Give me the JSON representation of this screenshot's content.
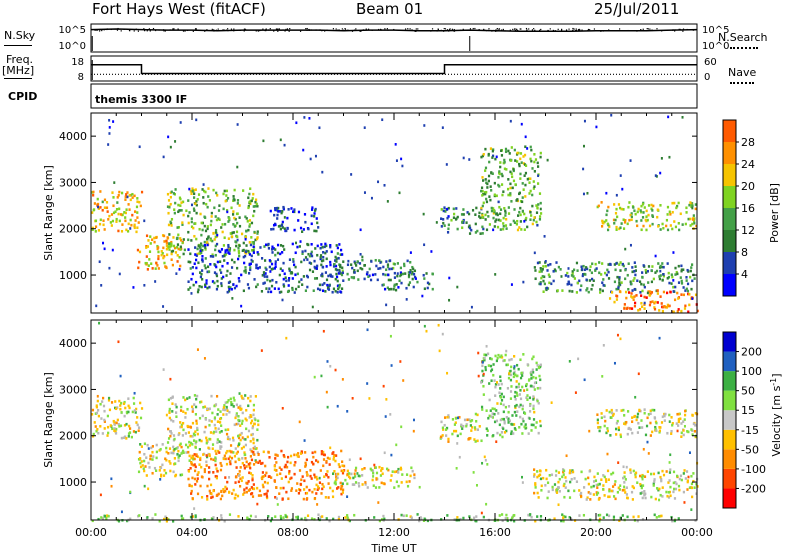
{
  "header": {
    "radar": "Fort Hays West (fitACF)",
    "beam": "Beam 01",
    "date": "25/Jul/2011"
  },
  "aux_panels": {
    "nsky_label": "N.Sky",
    "nsearch_label": "N.Search",
    "noise_ticks": [
      "10^5",
      "10^0"
    ],
    "freq_label": "Freq.",
    "freq_unit": "[MHz]",
    "freq_ticks": [
      "18",
      "8"
    ],
    "nave_label": "Nave",
    "nave_ticks": [
      "60",
      "0"
    ],
    "cpid_label": "CPID",
    "cpid_value": "themis 3300 IF"
  },
  "colors": {
    "power_scale": [
      "#0000ff",
      "#1e3fb0",
      "#2e7d32",
      "#43a047",
      "#7fd321",
      "#f6c400",
      "#ff9000",
      "#ff5a00",
      "#ff0000"
    ],
    "velocity_scale": [
      "#ff0000",
      "#ff4500",
      "#ff8c00",
      "#ffc000",
      "#c8c8c8",
      "#80e040",
      "#3cb043",
      "#2060c0",
      "#0000d0"
    ],
    "ground_scatter": "#b8b8b8"
  },
  "chart_data": [
    {
      "type": "line",
      "title": "",
      "series": [
        {
          "name": "N.Sky",
          "x": [
            "00:00",
            "01:00",
            "02:00",
            "03:00",
            "04:00",
            "05:00",
            "06:00",
            "07:00",
            "08:00",
            "09:00",
            "10:00",
            "11:00",
            "12:00",
            "13:00",
            "14:00",
            "15:00",
            "16:00",
            "17:00",
            "18:00",
            "19:00",
            "20:00",
            "21:00",
            "22:00",
            "23:00",
            "24:00"
          ],
          "values": [
            4.0,
            4.1,
            4.0,
            3.9,
            3.9,
            3.8,
            3.9,
            3.9,
            3.9,
            3.9,
            3.8,
            3.9,
            3.9,
            3.8,
            3.8,
            3.9,
            3.8,
            3.7,
            3.7,
            3.7,
            3.8,
            3.8,
            3.8,
            3.9,
            4.0
          ]
        }
      ],
      "ylim": [
        0,
        5
      ],
      "ylabel": "N.Sky"
    },
    {
      "type": "line",
      "series": [
        {
          "name": "Freq.",
          "x": [
            "00:00",
            "02:00",
            "02:00",
            "14:00",
            "14:00",
            "15:00",
            "24:00"
          ],
          "values": [
            14.5,
            14.5,
            11.0,
            11.0,
            14.5,
            14.5,
            14.5
          ]
        },
        {
          "name": "Nave",
          "x": [
            "00:00",
            "24:00"
          ],
          "values": [
            16,
            16
          ]
        }
      ],
      "freq_ylim": [
        8,
        18
      ],
      "nave_ylim": [
        0,
        60
      ]
    },
    {
      "type": "heatmap",
      "ylabel": "Slant Range [km]",
      "xlabel": "Time UT",
      "x_ticks": [
        "00:00",
        "04:00",
        "08:00",
        "12:00",
        "16:00",
        "20:00",
        "00:00"
      ],
      "y_ticks": [
        1000,
        2000,
        3000,
        4000
      ],
      "xlim_hours": [
        0,
        24
      ],
      "ylim_km": [
        180,
        4500
      ],
      "colorbar_label": "Power [dB]",
      "colorbar_ticks": [
        4,
        8,
        12,
        16,
        20,
        24,
        28
      ],
      "colorbar_range": [
        0,
        32
      ],
      "regions": [
        {
          "t0": 0.0,
          "t1": 2.0,
          "r0": 1950,
          "r1": 2850,
          "p": 20
        },
        {
          "t0": 1.8,
          "t1": 3.6,
          "r0": 1150,
          "r1": 1900,
          "p": 21
        },
        {
          "t0": 3.0,
          "t1": 6.6,
          "r0": 1450,
          "r1": 2900,
          "p": 14
        },
        {
          "t0": 3.8,
          "t1": 10.0,
          "r0": 650,
          "r1": 1700,
          "p": 6
        },
        {
          "t0": 7.0,
          "t1": 9.0,
          "r0": 1950,
          "r1": 2500,
          "p": 5
        },
        {
          "t0": 9.5,
          "t1": 12.8,
          "r0": 900,
          "r1": 1350,
          "p": 9
        },
        {
          "t0": 11.5,
          "t1": 13.5,
          "r0": 700,
          "r1": 1100,
          "p": 8
        },
        {
          "t0": 13.8,
          "t1": 15.5,
          "r0": 1900,
          "r1": 2500,
          "p": 9
        },
        {
          "t0": 15.4,
          "t1": 17.8,
          "r0": 2000,
          "r1": 3800,
          "p": 13
        },
        {
          "t0": 17.5,
          "t1": 24.0,
          "r0": 650,
          "r1": 1300,
          "p": 10
        },
        {
          "t0": 20.5,
          "t1": 24.0,
          "r0": 230,
          "r1": 700,
          "p": 24
        },
        {
          "t0": 20.0,
          "t1": 24.0,
          "r0": 2000,
          "r1": 2600,
          "p": 17
        }
      ]
    },
    {
      "type": "heatmap",
      "ylabel": "Slant Range [km]",
      "xlabel": "Time UT",
      "x_ticks": [
        "00:00",
        "04:00",
        "08:00",
        "12:00",
        "16:00",
        "20:00",
        "00:00"
      ],
      "y_ticks": [
        1000,
        2000,
        3000,
        4000
      ],
      "xlim_hours": [
        0,
        24
      ],
      "ylim_km": [
        180,
        4500
      ],
      "colorbar_label": "Velocity [m s^-1]",
      "colorbar_ticks": [
        -200,
        -100,
        -50,
        -15,
        15,
        50,
        100,
        200
      ],
      "regions": [
        {
          "t0": 0.0,
          "t1": 2.0,
          "r0": 1950,
          "r1": 2850,
          "v": 0
        },
        {
          "t0": 1.8,
          "t1": 3.6,
          "r0": 1150,
          "r1": 1900,
          "v": 0
        },
        {
          "t0": 3.0,
          "t1": 6.6,
          "r0": 1450,
          "r1": 2900,
          "v": 0
        },
        {
          "t0": 3.8,
          "t1": 10.0,
          "r0": 650,
          "r1": 1700,
          "v": -80
        },
        {
          "t0": 9.5,
          "t1": 12.8,
          "r0": 900,
          "r1": 1350,
          "v": 0
        },
        {
          "t0": 13.8,
          "t1": 15.5,
          "r0": 1900,
          "r1": 2500,
          "v": 0
        },
        {
          "t0": 15.4,
          "t1": 17.8,
          "r0": 2000,
          "r1": 3800,
          "v": 40
        },
        {
          "t0": 17.5,
          "t1": 24.0,
          "r0": 650,
          "r1": 1300,
          "v": 0
        },
        {
          "t0": 20.0,
          "t1": 24.0,
          "r0": 2000,
          "r1": 2600,
          "v": 0
        },
        {
          "t0": 0.0,
          "t1": 24.0,
          "r0": 180,
          "r1": 330,
          "v": 30
        }
      ]
    }
  ]
}
